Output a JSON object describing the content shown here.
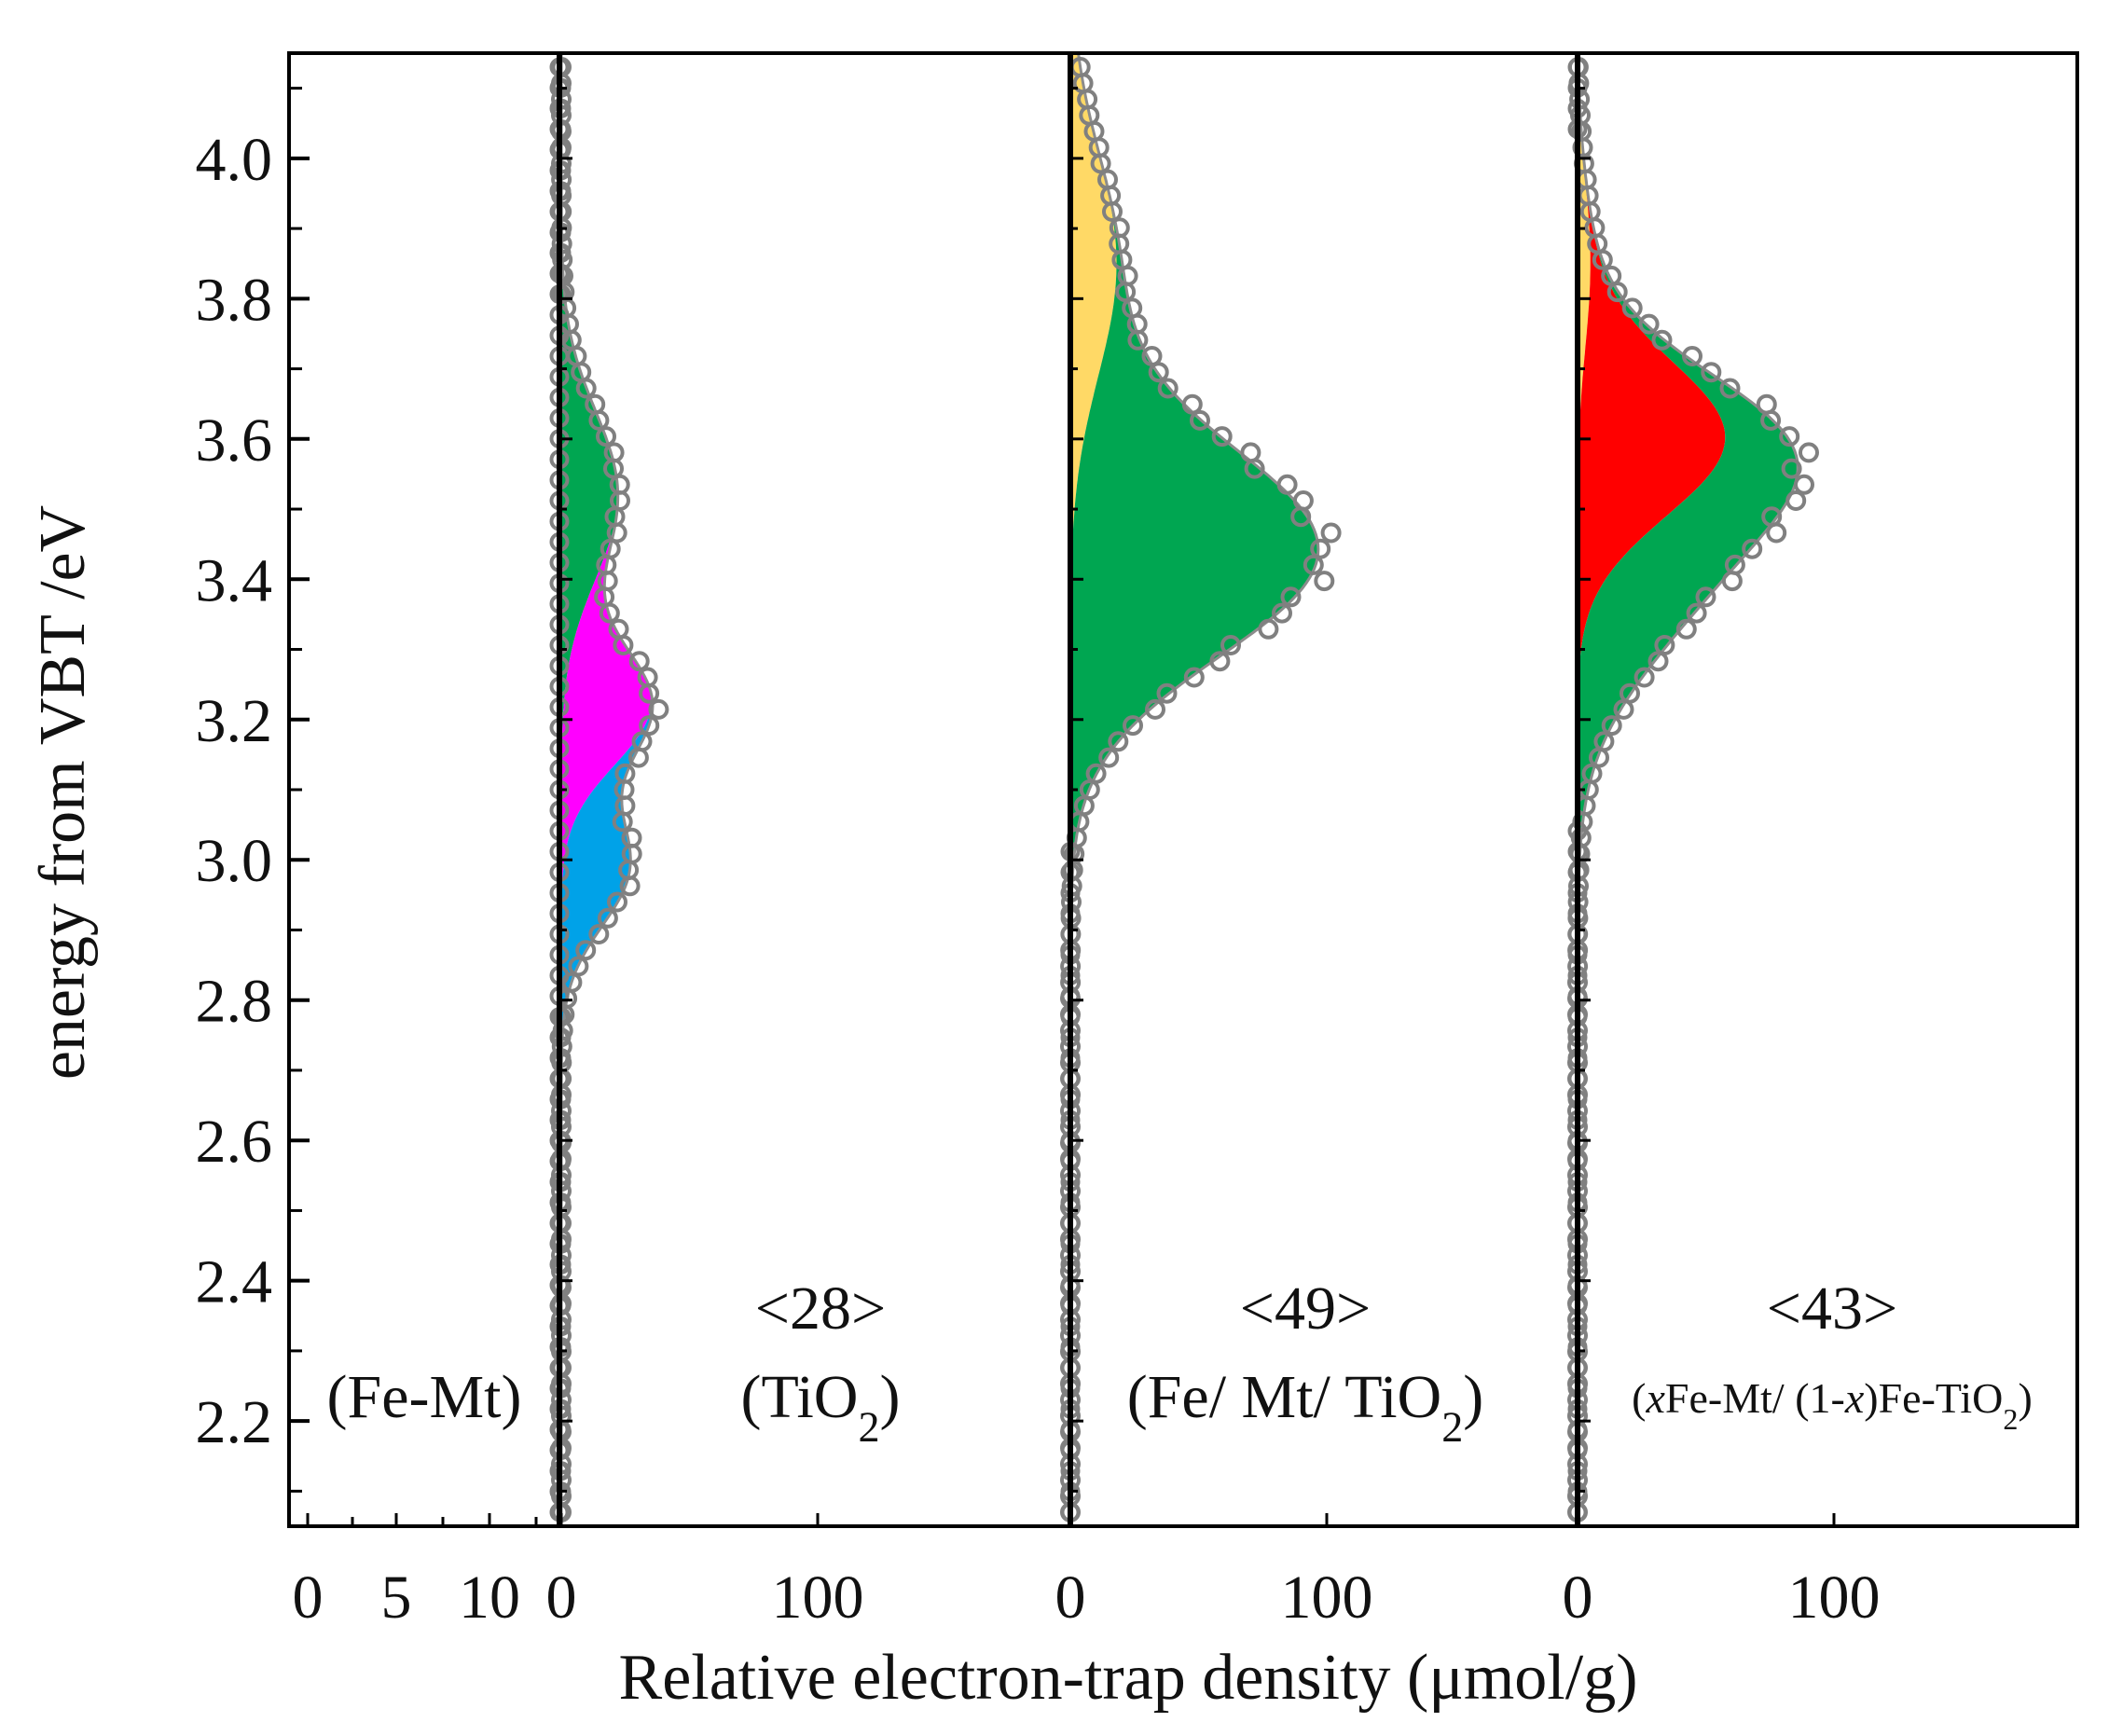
{
  "chart_data": {
    "type": "area",
    "xlabel": "Relative electron-trap density (μmol/g)",
    "ylabel": "energy from VBT /eV",
    "ylim": [
      2.05,
      4.15
    ],
    "y_ticks": [
      "2.2",
      "2.4",
      "2.6",
      "2.8",
      "3.0",
      "3.2",
      "3.4",
      "3.6",
      "3.8",
      "4.0"
    ],
    "y_tick_values": [
      2.2,
      2.4,
      2.6,
      2.8,
      3.0,
      3.2,
      3.4,
      3.6,
      3.8,
      4.0
    ],
    "colors": {
      "green": "#00a651",
      "magenta": "#ff00ff",
      "blue": "#00a2e8",
      "yellow": "#ffd966",
      "red": "#ff0000",
      "fit_line": "#8c8c8c",
      "marker": "#808080"
    },
    "panels": [
      {
        "id": "fe-mt",
        "label": "(Fe-Mt)",
        "total": "",
        "xlim": [
          0,
          13
        ],
        "x_ticks": [
          "0",
          "5",
          "10"
        ],
        "x_tick_values": [
          0,
          5,
          10
        ],
        "components": []
      },
      {
        "id": "tio2",
        "label": "(TiO2)",
        "total": "<28>",
        "xlim": [
          0,
          200
        ],
        "x_ticks": [
          "0",
          "100"
        ],
        "x_tick_values": [
          0,
          100
        ],
        "components": [
          {
            "name": "green",
            "center": 3.52,
            "amplitude": 22,
            "width": 0.12
          },
          {
            "name": "magenta",
            "center": 3.22,
            "amplitude": 34,
            "width": 0.085
          },
          {
            "name": "blue",
            "center": 2.99,
            "amplitude": 26,
            "width": 0.085
          }
        ]
      },
      {
        "id": "fe-mt-tio2",
        "label": "(Fe/ Mt/ TiO2)",
        "total": "<49>",
        "xlim": [
          0,
          200
        ],
        "x_ticks": [
          "0",
          "100"
        ],
        "x_tick_values": [
          0,
          100
        ],
        "components": [
          {
            "name": "yellow",
            "center": 3.85,
            "amplitude": 18,
            "width": 0.16
          },
          {
            "name": "green",
            "center": 3.44,
            "amplitude": 96,
            "width": 0.15
          }
        ]
      },
      {
        "id": "xfe-mt-fe-tio2",
        "label": "(xFe-Mt/ (1-x)Fe-TiO2)",
        "total": "<43>",
        "xlim": [
          0,
          200
        ],
        "x_ticks": [
          "0",
          "100"
        ],
        "x_tick_values": [
          0,
          100
        ],
        "components": [
          {
            "name": "yellow",
            "center": 3.85,
            "amplitude": 5,
            "width": 0.12
          },
          {
            "name": "red",
            "center": 3.6,
            "amplitude": 57,
            "width": 0.11
          },
          {
            "name": "green",
            "center": 3.43,
            "amplitude": 47,
            "width": 0.15
          }
        ]
      }
    ]
  }
}
